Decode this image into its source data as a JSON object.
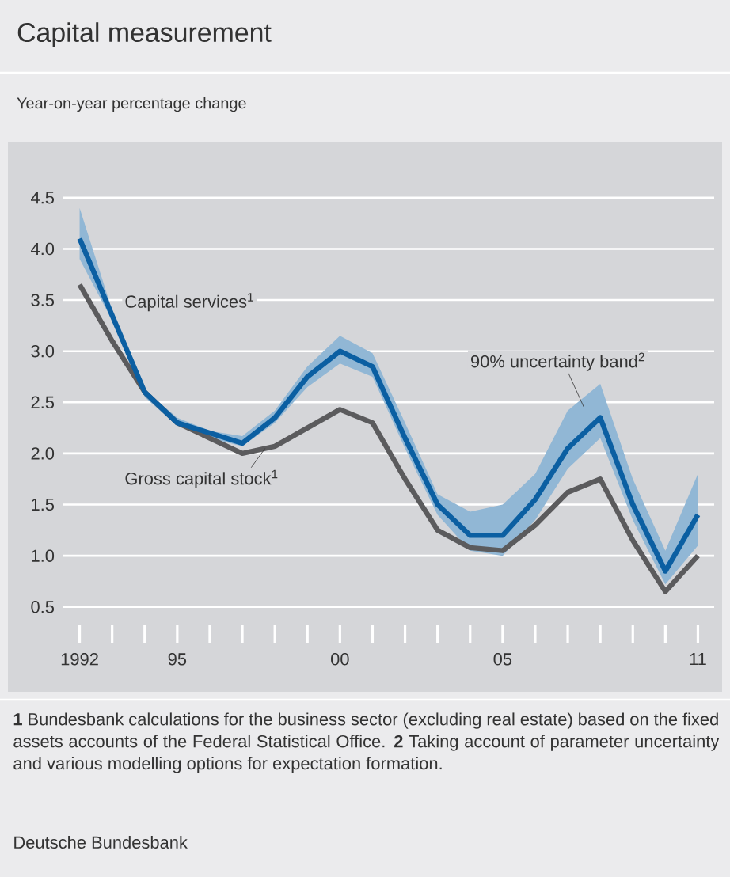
{
  "chart_data": {
    "type": "line",
    "title": "Capital measurement",
    "subtitle": "Year-on-year percentage change",
    "x": [
      1992,
      1993,
      1994,
      1995,
      1996,
      1997,
      1998,
      1999,
      2000,
      2001,
      2002,
      2003,
      2004,
      2005,
      2006,
      2007,
      2008,
      2009,
      2010,
      2011
    ],
    "series": [
      {
        "name": "Capital services$^{1}$",
        "color": "#0b5fa2",
        "values": [
          4.1,
          3.35,
          2.6,
          2.3,
          2.2,
          2.1,
          2.35,
          2.75,
          3.0,
          2.85,
          2.15,
          1.5,
          1.2,
          1.2,
          1.55,
          2.05,
          2.35,
          1.5,
          0.85,
          1.4
        ],
        "lower": [
          3.9,
          3.3,
          2.55,
          2.27,
          2.15,
          2.07,
          2.3,
          2.65,
          2.88,
          2.75,
          2.05,
          1.4,
          1.05,
          1.0,
          1.35,
          1.85,
          2.15,
          1.35,
          0.72,
          1.1
        ],
        "upper": [
          4.4,
          3.4,
          2.62,
          2.35,
          2.22,
          2.17,
          2.42,
          2.85,
          3.15,
          2.98,
          2.3,
          1.6,
          1.43,
          1.5,
          1.8,
          2.42,
          2.68,
          1.75,
          1.05,
          1.8
        ]
      },
      {
        "name": "Gross capital stock$^{1}$",
        "color": "#5b5b5d",
        "values": [
          3.65,
          3.1,
          2.6,
          2.3,
          2.15,
          2.0,
          2.07,
          2.25,
          2.43,
          2.3,
          1.75,
          1.25,
          1.08,
          1.05,
          1.3,
          1.62,
          1.75,
          1.15,
          0.65,
          1.0
        ]
      }
    ],
    "xlim": [
      1991.5,
      2011.5
    ],
    "xticks": [
      {
        "value": 1992,
        "label": "1992"
      },
      {
        "value": 1993,
        "label": null
      },
      {
        "value": 1994,
        "label": null
      },
      {
        "value": 1995,
        "label": "95"
      },
      {
        "value": 1996,
        "label": null
      },
      {
        "value": 1997,
        "label": null
      },
      {
        "value": 1998,
        "label": null
      },
      {
        "value": 1999,
        "label": null
      },
      {
        "value": 2000,
        "label": "00"
      },
      {
        "value": 2001,
        "label": null
      },
      {
        "value": 2002,
        "label": null
      },
      {
        "value": 2003,
        "label": null
      },
      {
        "value": 2004,
        "label": null
      },
      {
        "value": 2005,
        "label": "05"
      },
      {
        "value": 2006,
        "label": null
      },
      {
        "value": 2007,
        "label": null
      },
      {
        "value": 2008,
        "label": null
      },
      {
        "value": 2009,
        "label": null
      },
      {
        "value": 2010,
        "label": null
      },
      {
        "value": 2011,
        "label": "11"
      }
    ],
    "ylim": [
      0.5,
      4.5
    ],
    "yticks": [
      0.5,
      {
        "value": 1,
        "label": "1.0"
      },
      1.5,
      {
        "value": 2,
        "label": "2.0"
      },
      2.5,
      {
        "value": 3,
        "label": "3.0"
      },
      3.5,
      {
        "value": 4,
        "label": "4.0"
      },
      4.5
    ],
    "grid": "y",
    "annotations": [
      "90% uncertainty band$^{2}$",
      "**1** Bundesbank calculations for the business sector (excluding real estate) based on the fixed assets accounts of the Federal Statistical Office. **2** Taking account of parameter uncertainty and various modelling options for expectation formation.",
      "Deutsche Bundesbank"
    ]
  }
}
